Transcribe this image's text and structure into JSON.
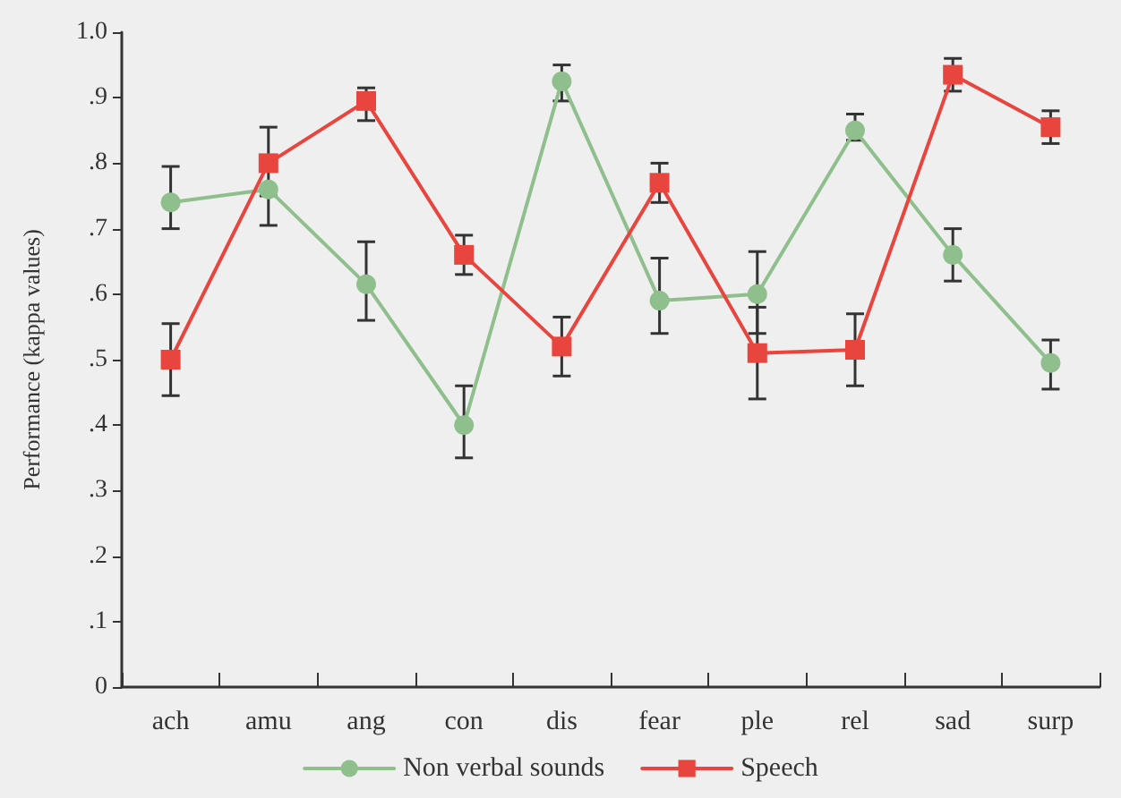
{
  "chart_data": {
    "type": "line",
    "ylabel": "Performance (kappa values)",
    "categories": [
      "ach",
      "amu",
      "ang",
      "con",
      "dis",
      "fear",
      "ple",
      "rel",
      "sad",
      "surp"
    ],
    "series": [
      {
        "name": "Non verbal sounds",
        "color": "#8fbf8c",
        "marker": "circle",
        "values": [
          0.74,
          0.76,
          0.615,
          0.4,
          0.925,
          0.59,
          0.6,
          0.85,
          0.66,
          0.495
        ],
        "errors": [
          [
            0.7,
            0.795
          ],
          [
            0.705,
            0.76
          ],
          [
            0.56,
            0.68
          ],
          [
            0.35,
            0.46
          ],
          [
            0.895,
            0.95
          ],
          [
            0.54,
            0.655
          ],
          [
            0.54,
            0.665
          ],
          [
            0.835,
            0.875
          ],
          [
            0.62,
            0.7
          ],
          [
            0.455,
            0.53
          ]
        ]
      },
      {
        "name": "Speech",
        "color": "#e8453f",
        "marker": "square",
        "values": [
          0.5,
          0.8,
          0.895,
          0.66,
          0.52,
          0.77,
          0.51,
          0.515,
          0.935,
          0.855
        ],
        "errors": [
          [
            0.445,
            0.555
          ],
          [
            0.75,
            0.855
          ],
          [
            0.865,
            0.915
          ],
          [
            0.63,
            0.69
          ],
          [
            0.475,
            0.565
          ],
          [
            0.74,
            0.8
          ],
          [
            0.44,
            0.58
          ],
          [
            0.46,
            0.57
          ],
          [
            0.91,
            0.96
          ],
          [
            0.83,
            0.88
          ]
        ]
      }
    ],
    "ylim": [
      0,
      1
    ],
    "yticks": [
      {
        "value": 0,
        "label": "0"
      },
      {
        "value": 0.1,
        "label": ".1"
      },
      {
        "value": 0.2,
        "label": ".2"
      },
      {
        "value": 0.3,
        "label": ".3"
      },
      {
        "value": 0.4,
        "label": ".4"
      },
      {
        "value": 0.5,
        "label": ".5"
      },
      {
        "value": 0.6,
        "label": ".6"
      },
      {
        "value": 0.7,
        "label": ".7"
      },
      {
        "value": 0.8,
        "label": ".8"
      },
      {
        "value": 0.9,
        "label": ".9"
      },
      {
        "value": 1,
        "label": "1.0"
      }
    ],
    "grid": false,
    "legend": "bottom",
    "line_style": "solid"
  }
}
